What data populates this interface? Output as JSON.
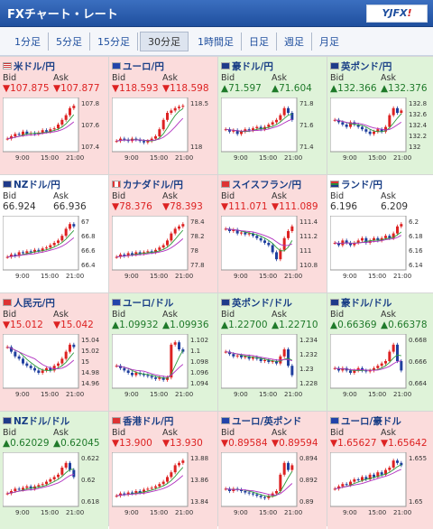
{
  "header": {
    "title": "FXチャート・レート",
    "logo_text": "YJFX!",
    "logo_bang": "!"
  },
  "tabs": [
    "1分足",
    "5分足",
    "15分足",
    "30分足",
    "1時間足",
    "日足",
    "週足",
    "月足"
  ],
  "active_tab": "30分足",
  "labels": {
    "bid": "Bid",
    "ask": "Ask"
  },
  "x_ticks": [
    "9:00",
    "15:00",
    "21:00"
  ],
  "cells": [
    {
      "pair": "米ドル/円",
      "flag": "us",
      "trend": "down",
      "bid": "▼107.875",
      "ask": "▼107.877",
      "y_ticks": [
        "107.8",
        "107.6",
        "107.4"
      ],
      "shape": [
        0.2,
        0.25,
        0.3,
        0.28,
        0.35,
        0.3,
        0.32,
        0.3,
        0.33,
        0.38,
        0.35,
        0.4,
        0.42,
        0.5,
        0.6,
        0.7,
        0.85,
        0.9
      ]
    },
    {
      "pair": "ユーロ/円",
      "flag": "eu",
      "trend": "down",
      "bid": "▼118.593",
      "ask": "▼118.598",
      "y_ticks": [
        "118.5",
        "118"
      ],
      "shape": [
        0.15,
        0.2,
        0.18,
        0.15,
        0.2,
        0.18,
        0.15,
        0.12,
        0.15,
        0.2,
        0.25,
        0.4,
        0.6,
        0.75,
        0.8,
        0.85,
        0.88,
        0.9
      ]
    },
    {
      "pair": "豪ドル/円",
      "flag": "au",
      "trend": "up",
      "bid": "▲71.597",
      "ask": "▲71.604",
      "y_ticks": [
        "71.8",
        "71.6",
        "71.4"
      ],
      "shape": [
        0.4,
        0.35,
        0.38,
        0.3,
        0.35,
        0.4,
        0.38,
        0.42,
        0.45,
        0.4,
        0.45,
        0.5,
        0.55,
        0.6,
        0.7,
        0.85,
        0.75,
        0.6
      ]
    },
    {
      "pair": "英ポンド/円",
      "flag": "gb",
      "trend": "up",
      "bid": "▲132.366",
      "ask": "▲132.376",
      "y_ticks": [
        "132.8",
        "132.6",
        "132.4",
        "132.2",
        "132"
      ],
      "shape": [
        0.6,
        0.55,
        0.5,
        0.45,
        0.55,
        0.5,
        0.45,
        0.4,
        0.35,
        0.3,
        0.35,
        0.4,
        0.35,
        0.45,
        0.7,
        0.85,
        0.75,
        0.8
      ]
    },
    {
      "pair": "NZドル/円",
      "flag": "nz",
      "trend": "flat",
      "bid": "66.924",
      "ask": "66.936",
      "y_ticks": [
        "67",
        "66.8",
        "66.6",
        "66.4"
      ],
      "shape": [
        0.2,
        0.25,
        0.22,
        0.3,
        0.28,
        0.32,
        0.3,
        0.35,
        0.33,
        0.38,
        0.4,
        0.45,
        0.5,
        0.55,
        0.65,
        0.8,
        0.9,
        0.85
      ]
    },
    {
      "pair": "カナダドル/円",
      "flag": "ca",
      "trend": "down",
      "bid": "▼78.376",
      "ask": "▼78.393",
      "y_ticks": [
        "78.4",
        "78.2",
        "78",
        "77.8"
      ],
      "shape": [
        0.2,
        0.25,
        0.22,
        0.28,
        0.25,
        0.3,
        0.27,
        0.3,
        0.32,
        0.3,
        0.35,
        0.4,
        0.45,
        0.55,
        0.7,
        0.8,
        0.85,
        0.9
      ]
    },
    {
      "pair": "スイスフラン/円",
      "flag": "ch",
      "trend": "down",
      "bid": "▼111.071",
      "ask": "▼111.089",
      "y_ticks": [
        "111.4",
        "111.2",
        "111",
        "110.8"
      ],
      "shape": [
        0.8,
        0.75,
        0.78,
        0.7,
        0.72,
        0.68,
        0.7,
        0.65,
        0.6,
        0.55,
        0.5,
        0.45,
        0.3,
        0.15,
        0.35,
        0.6,
        0.75,
        0.85
      ]
    },
    {
      "pair": "ランド/円",
      "flag": "za",
      "trend": "flat",
      "bid": "6.196",
      "ask": "6.209",
      "y_ticks": [
        "6.2",
        "6.18",
        "6.16",
        "6.14"
      ],
      "shape": [
        0.5,
        0.45,
        0.55,
        0.5,
        0.45,
        0.5,
        0.55,
        0.6,
        0.5,
        0.55,
        0.6,
        0.55,
        0.6,
        0.65,
        0.6,
        0.7,
        0.85,
        0.9
      ]
    },
    {
      "pair": "人民元/円",
      "flag": "cn",
      "trend": "down",
      "bid": "▼15.012",
      "ask": "▼15.042",
      "y_ticks": [
        "15.04",
        "15.02",
        "15",
        "14.98",
        "14.96"
      ],
      "shape": [
        0.8,
        0.7,
        0.6,
        0.55,
        0.45,
        0.4,
        0.35,
        0.3,
        0.25,
        0.3,
        0.35,
        0.3,
        0.4,
        0.45,
        0.55,
        0.7,
        0.85,
        0.8
      ]
    },
    {
      "pair": "ユーロ/ドル",
      "flag": "eu",
      "trend": "up",
      "bid": "▲1.09932",
      "ask": "▲1.09936",
      "y_ticks": [
        "1.102",
        "1.1",
        "1.098",
        "1.096",
        "1.094"
      ],
      "shape": [
        0.4,
        0.35,
        0.3,
        0.25,
        0.2,
        0.25,
        0.22,
        0.2,
        0.18,
        0.15,
        0.12,
        0.15,
        0.1,
        0.15,
        0.85,
        0.9,
        0.75,
        0.7
      ]
    },
    {
      "pair": "英ポンド/ドル",
      "flag": "gb",
      "trend": "up",
      "bid": "▲1.22700",
      "ask": "▲1.22710",
      "y_ticks": [
        "1.234",
        "1.232",
        "1.23",
        "1.228"
      ],
      "shape": [
        0.7,
        0.65,
        0.6,
        0.62,
        0.58,
        0.6,
        0.55,
        0.58,
        0.55,
        0.5,
        0.52,
        0.48,
        0.5,
        0.45,
        0.6,
        0.75,
        0.4,
        0.2
      ]
    },
    {
      "pair": "豪ドル/ドル",
      "flag": "au",
      "trend": "up",
      "bid": "▲0.66369",
      "ask": "▲0.66378",
      "y_ticks": [
        "0.668",
        "0.666",
        "0.664"
      ],
      "shape": [
        0.35,
        0.3,
        0.35,
        0.3,
        0.25,
        0.3,
        0.35,
        0.3,
        0.28,
        0.3,
        0.35,
        0.4,
        0.45,
        0.5,
        0.7,
        0.85,
        0.5,
        0.3
      ]
    },
    {
      "pair": "NZドル/ドル",
      "flag": "nz",
      "trend": "up",
      "bid": "▲0.62029",
      "ask": "▲0.62045",
      "y_ticks": [
        "0.622",
        "0.62",
        "0.618"
      ],
      "shape": [
        0.2,
        0.25,
        0.3,
        0.28,
        0.32,
        0.35,
        0.3,
        0.35,
        0.38,
        0.4,
        0.45,
        0.5,
        0.55,
        0.6,
        0.75,
        0.85,
        0.7,
        0.55
      ]
    },
    {
      "pair": "香港ドル/円",
      "flag": "hk",
      "trend": "down",
      "bid": "▼13.900",
      "ask": "▼13.930",
      "y_ticks": [
        "13.88",
        "13.86",
        "13.84"
      ],
      "shape": [
        0.15,
        0.2,
        0.18,
        0.22,
        0.2,
        0.25,
        0.22,
        0.28,
        0.3,
        0.32,
        0.35,
        0.4,
        0.45,
        0.55,
        0.65,
        0.8,
        0.85,
        0.9
      ]
    },
    {
      "pair": "ユーロ/英ポンド",
      "flag": "eu",
      "trend": "down",
      "bid": "▼0.89584",
      "ask": "▼0.89594",
      "y_ticks": [
        "0.894",
        "0.892",
        "0.89"
      ],
      "shape": [
        0.3,
        0.25,
        0.3,
        0.28,
        0.25,
        0.22,
        0.2,
        0.18,
        0.15,
        0.12,
        0.1,
        0.15,
        0.2,
        0.25,
        0.6,
        0.85,
        0.7,
        0.8
      ]
    },
    {
      "pair": "ユーロ/豪ドル",
      "flag": "eu",
      "trend": "down",
      "bid": "▼1.65627",
      "ask": "▼1.65642",
      "y_ticks": [
        "1.655",
        "1.65"
      ],
      "shape": [
        0.3,
        0.35,
        0.4,
        0.38,
        0.45,
        0.5,
        0.48,
        0.55,
        0.5,
        0.6,
        0.55,
        0.65,
        0.6,
        0.7,
        0.75,
        0.9,
        0.85,
        0.8
      ]
    }
  ]
}
